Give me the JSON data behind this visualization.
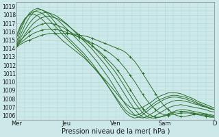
{
  "title": "",
  "xlabel": "Pression niveau de la mer( hPa )",
  "ylabel": "",
  "ylim": [
    1005.5,
    1019.5
  ],
  "xlim": [
    0,
    96
  ],
  "background_color": "#cce8e8",
  "grid_color": "#aad4d4",
  "line_color": "#2d6e2d",
  "xtick_labels": [
    "Mer",
    "Jeu",
    "Ven",
    "Sam",
    "D"
  ],
  "xtick_positions": [
    0,
    24,
    48,
    72,
    96
  ],
  "ytick_labels": [
    "1006",
    "1007",
    "1008",
    "1009",
    "1010",
    "1011",
    "1012",
    "1013",
    "1014",
    "1015",
    "1016",
    "1017",
    "1018",
    "1019"
  ],
  "ytick_values": [
    1006,
    1007,
    1008,
    1009,
    1010,
    1011,
    1012,
    1013,
    1014,
    1015,
    1016,
    1017,
    1018,
    1019
  ],
  "series": [
    [
      1014.2,
      1014.5,
      1014.8,
      1015.0,
      1015.2,
      1015.4,
      1015.6,
      1015.7,
      1015.8,
      1015.8,
      1015.8,
      1015.8,
      1015.8,
      1015.7,
      1015.7,
      1015.6,
      1015.5,
      1015.4,
      1015.2,
      1015.0,
      1014.8,
      1014.6,
      1014.4,
      1014.2,
      1014.0,
      1013.8,
      1013.5,
      1013.0,
      1012.5,
      1011.8,
      1011.0,
      1010.2,
      1009.4,
      1008.6,
      1007.8,
      1007.2,
      1006.7,
      1006.3,
      1006.0,
      1005.9,
      1005.9,
      1006.0,
      1006.1,
      1006.2,
      1006.2,
      1006.1,
      1006.0,
      1005.8
    ],
    [
      1014.3,
      1014.7,
      1015.1,
      1015.5,
      1015.8,
      1016.0,
      1016.2,
      1016.3,
      1016.3,
      1016.3,
      1016.2,
      1016.1,
      1015.9,
      1015.7,
      1015.5,
      1015.3,
      1015.1,
      1014.9,
      1014.6,
      1014.4,
      1014.1,
      1013.8,
      1013.5,
      1013.1,
      1012.7,
      1012.1,
      1011.5,
      1010.8,
      1010.1,
      1009.3,
      1008.5,
      1007.8,
      1007.2,
      1006.7,
      1006.3,
      1006.1,
      1006.0,
      1006.1,
      1006.2,
      1006.3,
      1006.3,
      1006.3,
      1006.2,
      1006.1,
      1006.0,
      1005.9,
      1005.8,
      1005.8
    ],
    [
      1014.5,
      1015.0,
      1015.5,
      1016.0,
      1016.4,
      1016.7,
      1016.9,
      1017.0,
      1017.0,
      1016.9,
      1016.7,
      1016.5,
      1016.2,
      1015.9,
      1015.6,
      1015.3,
      1015.0,
      1014.7,
      1014.3,
      1013.9,
      1013.5,
      1013.0,
      1012.5,
      1012.0,
      1011.4,
      1010.7,
      1009.9,
      1009.1,
      1008.3,
      1007.5,
      1006.8,
      1006.3,
      1006.0,
      1005.8,
      1005.8,
      1005.9,
      1006.1,
      1006.3,
      1006.4,
      1006.5,
      1006.5,
      1006.4,
      1006.3,
      1006.2,
      1006.1,
      1006.0,
      1005.9,
      1005.8
    ],
    [
      1014.2,
      1014.9,
      1015.7,
      1016.4,
      1017.0,
      1017.4,
      1017.7,
      1017.8,
      1017.8,
      1017.7,
      1017.5,
      1017.2,
      1016.8,
      1016.4,
      1016.0,
      1015.6,
      1015.2,
      1014.8,
      1014.3,
      1013.8,
      1013.3,
      1012.7,
      1012.1,
      1011.5,
      1010.8,
      1010.0,
      1009.2,
      1008.4,
      1007.6,
      1006.9,
      1006.3,
      1005.9,
      1005.7,
      1005.7,
      1005.8,
      1006.0,
      1006.2,
      1006.4,
      1006.6,
      1006.7,
      1006.7,
      1006.6,
      1006.5,
      1006.4,
      1006.3,
      1006.2,
      1006.1,
      1006.0
    ],
    [
      1014.3,
      1015.3,
      1016.2,
      1017.0,
      1017.6,
      1018.0,
      1018.2,
      1018.3,
      1018.2,
      1018.0,
      1017.7,
      1017.3,
      1016.9,
      1016.4,
      1015.9,
      1015.4,
      1014.9,
      1014.4,
      1013.9,
      1013.3,
      1012.7,
      1012.1,
      1011.4,
      1010.7,
      1009.9,
      1009.1,
      1008.3,
      1007.5,
      1006.8,
      1006.2,
      1005.8,
      1005.7,
      1005.8,
      1006.0,
      1006.3,
      1006.6,
      1006.9,
      1007.1,
      1007.2,
      1007.3,
      1007.2,
      1007.1,
      1007.0,
      1006.9,
      1006.8,
      1006.7,
      1006.5,
      1006.4
    ],
    [
      1014.5,
      1015.7,
      1016.8,
      1017.7,
      1018.3,
      1018.6,
      1018.6,
      1018.4,
      1018.1,
      1017.7,
      1017.3,
      1016.8,
      1016.3,
      1015.8,
      1015.3,
      1014.8,
      1014.3,
      1013.7,
      1013.1,
      1012.5,
      1011.8,
      1011.1,
      1010.4,
      1009.6,
      1008.8,
      1008.0,
      1007.2,
      1006.6,
      1006.1,
      1005.8,
      1005.7,
      1005.9,
      1006.2,
      1006.5,
      1006.9,
      1007.2,
      1007.5,
      1007.7,
      1007.8,
      1007.8,
      1007.7,
      1007.6,
      1007.4,
      1007.3,
      1007.1,
      1007.0,
      1006.8,
      1006.7
    ],
    [
      1014.8,
      1016.2,
      1017.4,
      1018.2,
      1018.6,
      1018.8,
      1018.6,
      1018.3,
      1017.8,
      1017.2,
      1016.6,
      1016.0,
      1015.4,
      1014.9,
      1014.4,
      1013.9,
      1013.4,
      1012.8,
      1012.2,
      1011.5,
      1010.8,
      1010.1,
      1009.3,
      1008.5,
      1007.7,
      1006.9,
      1006.3,
      1005.9,
      1005.7,
      1005.8,
      1006.1,
      1006.5,
      1006.9,
      1007.3,
      1007.6,
      1007.9,
      1008.1,
      1008.2,
      1008.2,
      1008.1,
      1008.0,
      1007.8,
      1007.6,
      1007.4,
      1007.2,
      1007.0,
      1006.8,
      1006.7
    ],
    [
      1015.3,
      1016.6,
      1017.5,
      1018.1,
      1018.4,
      1018.4,
      1018.2,
      1017.8,
      1017.3,
      1016.7,
      1016.2,
      1015.6,
      1015.1,
      1014.6,
      1014.1,
      1013.6,
      1013.1,
      1012.5,
      1011.9,
      1011.3,
      1010.7,
      1010.0,
      1009.3,
      1008.6,
      1007.9,
      1007.2,
      1006.6,
      1006.2,
      1006.0,
      1006.1,
      1006.4,
      1006.8,
      1007.2,
      1007.6,
      1007.9,
      1008.1,
      1008.3,
      1008.4,
      1008.4,
      1008.3,
      1008.2,
      1008.0,
      1007.8,
      1007.5,
      1007.3,
      1007.1,
      1006.9,
      1006.7
    ],
    [
      1015.6,
      1016.8,
      1017.6,
      1018.0,
      1018.1,
      1017.9,
      1017.5,
      1017.0,
      1016.4,
      1015.9,
      1015.4,
      1014.9,
      1014.5,
      1014.1,
      1013.7,
      1013.3,
      1012.9,
      1012.4,
      1011.9,
      1011.4,
      1010.8,
      1010.3,
      1009.7,
      1009.1,
      1008.5,
      1007.9,
      1007.4,
      1007.0,
      1006.8,
      1006.8,
      1007.0,
      1007.3,
      1007.6,
      1008.0,
      1008.3,
      1008.5,
      1008.7,
      1008.7,
      1008.7,
      1008.6,
      1008.4,
      1008.2,
      1008.0,
      1007.7,
      1007.5,
      1007.3,
      1007.1,
      1006.9
    ]
  ]
}
